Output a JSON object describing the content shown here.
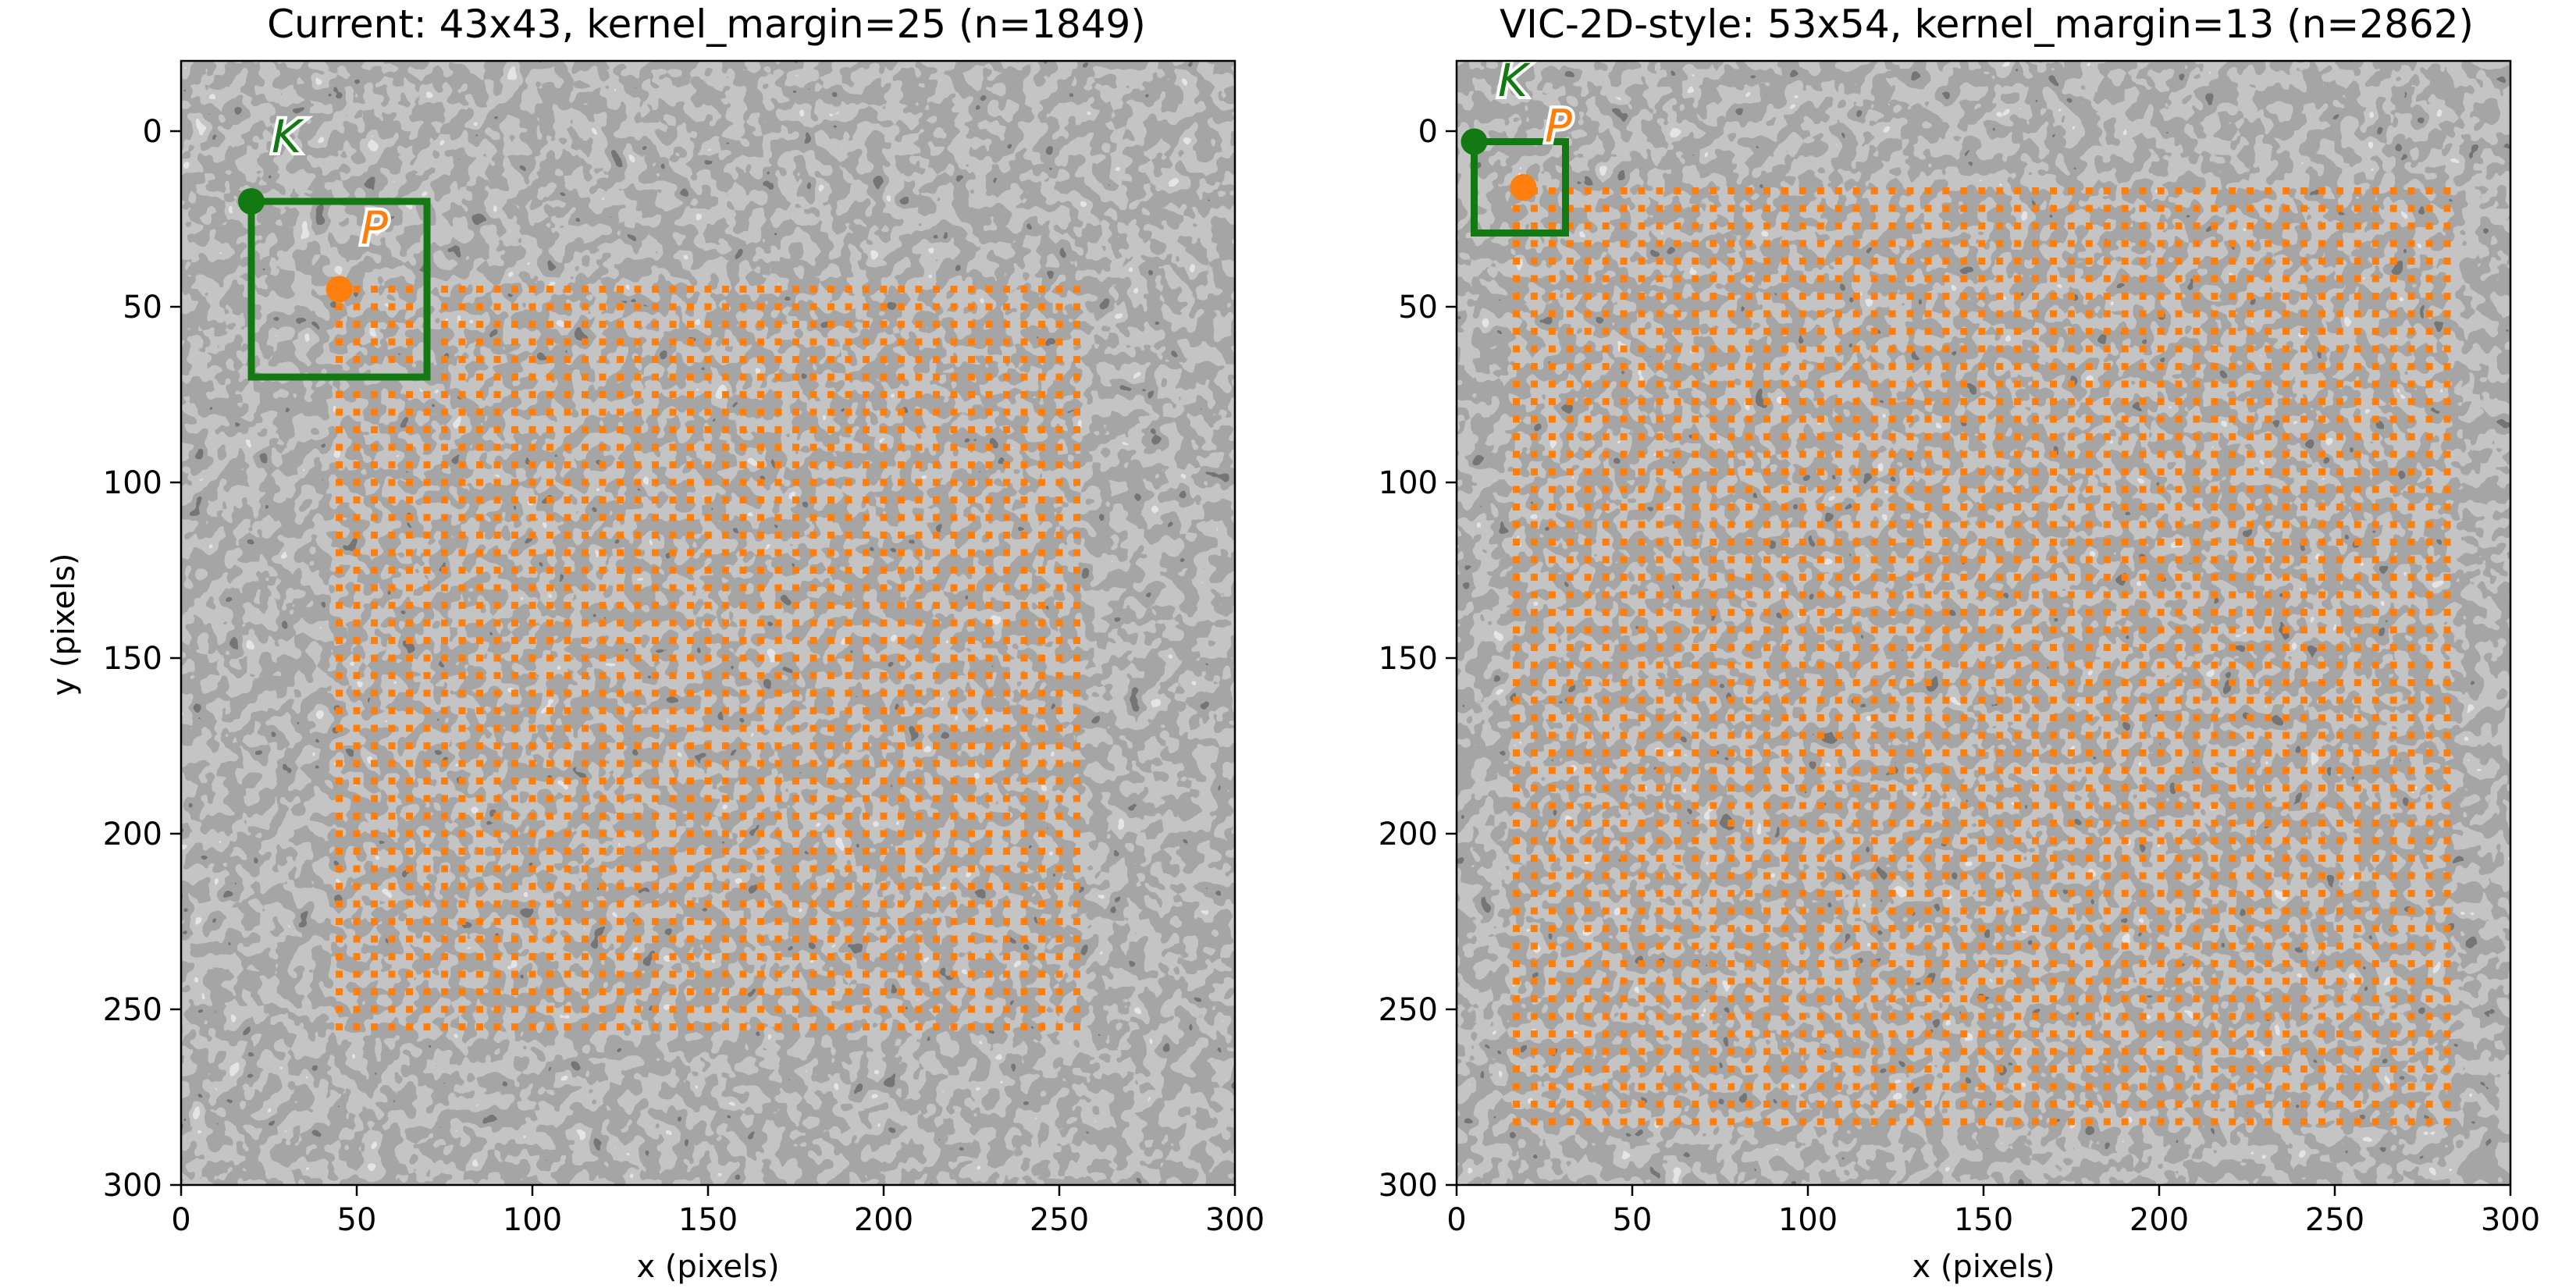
{
  "chart_data": [
    {
      "type": "scatter",
      "title": "Current: 43x43, kernel_margin=25 (n=1849)",
      "xlabel": "x (pixels)",
      "ylabel": "y (pixels)",
      "xlim": [
        0,
        300
      ],
      "ylim": [
        300,
        -20
      ],
      "y_inverted": true,
      "xticks": [
        0,
        50,
        100,
        150,
        200,
        250,
        300
      ],
      "yticks": [
        0,
        50,
        100,
        150,
        200,
        250,
        300
      ],
      "xtick_labels": [
        "0",
        "50",
        "100",
        "150",
        "200",
        "250",
        "300"
      ],
      "ytick_labels": [
        "0",
        "50",
        "100",
        "150",
        "200",
        "250",
        "300"
      ],
      "background": "grayscale speckle image (300x300 px)",
      "grid_points": {
        "nx": 43,
        "ny": 43,
        "x_start": 45,
        "x_end": 255,
        "y_start": 45,
        "y_end": 255,
        "color": "#ff7f0e"
      },
      "kernel_box": {
        "label": "K",
        "x0": 20,
        "y0": 20,
        "x1": 70,
        "y1": 70,
        "color": "#137a13"
      },
      "K_point": {
        "x": 20,
        "y": 20
      },
      "P_point": {
        "label": "P",
        "x": 45,
        "y": 45
      },
      "K_label_pos": {
        "x": 30,
        "y": 6
      },
      "P_label_pos": {
        "x": 55,
        "y": 32
      }
    },
    {
      "type": "scatter",
      "title": "VIC-2D-style: 53x54, kernel_margin=13 (n=2862)",
      "xlabel": "x (pixels)",
      "ylabel": "",
      "xlim": [
        0,
        300
      ],
      "ylim": [
        300,
        -20
      ],
      "y_inverted": true,
      "xticks": [
        0,
        50,
        100,
        150,
        200,
        250,
        300
      ],
      "yticks": [
        0,
        50,
        100,
        150,
        200,
        250,
        300
      ],
      "xtick_labels": [
        "0",
        "50",
        "100",
        "150",
        "200",
        "250",
        "300"
      ],
      "ytick_labels": [
        "0",
        "50",
        "100",
        "150",
        "200",
        "250",
        "300"
      ],
      "background": "grayscale speckle image (300x300 px)",
      "grid_points": {
        "nx": 53,
        "ny": 54,
        "x_start": 17,
        "x_end": 282,
        "y_start": 17,
        "y_end": 282,
        "color": "#ff7f0e"
      },
      "kernel_box": {
        "label": "K",
        "x0": 5,
        "y0": 3,
        "x1": 31,
        "y1": 29,
        "color": "#137a13"
      },
      "K_point": {
        "x": 5,
        "y": 3
      },
      "P_point": {
        "label": "P",
        "x": 19,
        "y": 16
      },
      "K_label_pos": {
        "x": 16,
        "y": -10
      },
      "P_label_pos": {
        "x": 29,
        "y": 3
      }
    }
  ]
}
